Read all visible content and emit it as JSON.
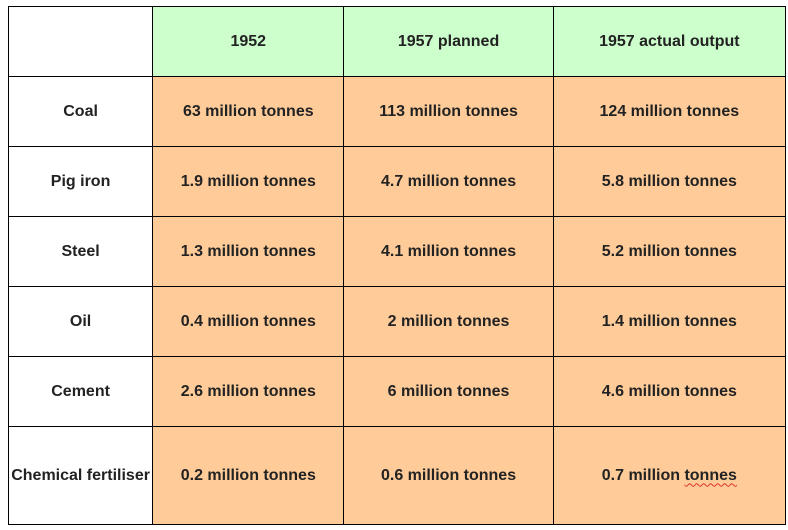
{
  "colors": {
    "header_bg": "#ccffcc",
    "data_bg": "#ffcc99"
  },
  "columns": [
    "1952",
    "1957 planned",
    "1957 actual output"
  ],
  "rows": [
    {
      "label": "Coal",
      "values": [
        "63 million tonnes",
        "113 million tonnes",
        "124 million tonnes"
      ]
    },
    {
      "label": "Pig iron",
      "values": [
        "1.9 million tonnes",
        "4.7 million tonnes",
        "5.8 million tonnes"
      ]
    },
    {
      "label": "Steel",
      "values": [
        "1.3 million tonnes",
        "4.1 million tonnes",
        "5.2 million tonnes"
      ]
    },
    {
      "label": "Oil",
      "values": [
        "0.4 million tonnes",
        "2 million tonnes",
        "1.4 million tonnes"
      ]
    },
    {
      "label": "Cement",
      "values": [
        "2.6 million tonnes",
        "6 million tonnes",
        "4.6 million tonnes"
      ]
    },
    {
      "label": "Chemical fertiliser",
      "values": [
        "0.2 million tonnes",
        "0.6 million tonnes",
        "0.7 million tonnes"
      ]
    }
  ]
}
